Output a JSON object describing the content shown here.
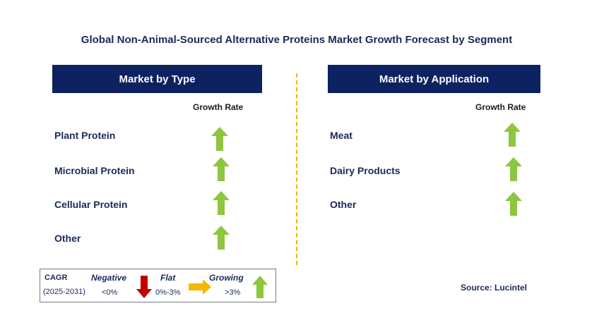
{
  "title": "Global Non-Animal-Sourced Alternative Proteins Market Growth Forecast by Segment",
  "left_panel": {
    "header": "Market by Type",
    "growth_label": "Growth Rate",
    "rows": [
      {
        "label": "Plant Protein",
        "trend": "growing"
      },
      {
        "label": "Microbial Protein",
        "trend": "growing"
      },
      {
        "label": "Cellular Protein",
        "trend": "growing"
      },
      {
        "label": "Other",
        "trend": "growing"
      }
    ]
  },
  "right_panel": {
    "header": "Market by Application",
    "growth_label": "Growth Rate",
    "rows": [
      {
        "label": "Meat",
        "trend": "growing"
      },
      {
        "label": "Dairy Products",
        "trend": "growing"
      },
      {
        "label": "Other",
        "trend": "growing"
      }
    ]
  },
  "legend": {
    "cagr": "CAGR",
    "period": "(2025-2031)",
    "negative_label": "Negative",
    "negative_value": "<0%",
    "flat_label": "Flat",
    "flat_value": "0%-3%",
    "growing_label": "Growing",
    "growing_value": ">3%"
  },
  "source": "Source: Lucintel",
  "colors": {
    "header_bg": "#0d2260",
    "growing": "#8dc63f",
    "negative": "#c00000",
    "flat": "#f5b800",
    "divider": "#f0b400"
  },
  "icons": {
    "growing": "up-arrow-icon",
    "negative": "down-arrow-icon",
    "flat": "right-arrow-icon"
  }
}
